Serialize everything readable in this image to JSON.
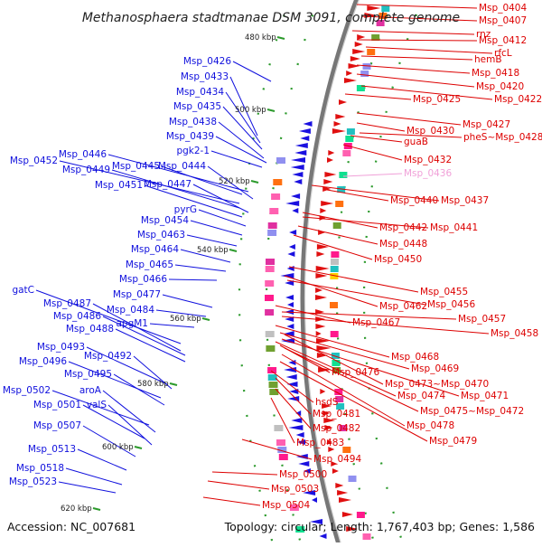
{
  "title": "Methanosphaera stadtmanae DSM 3091, complete genome",
  "accession": "Accession: NC_007681",
  "topology": "Topology: circular; Length: 1,767,403 bp; Genes: 1,586",
  "colors": {
    "left": "#1010dd",
    "right": "#dd0000",
    "faded": "#f0a0d8",
    "backbone": "#777777"
  },
  "kbp_ticks": [
    "480 kbp",
    "500 kbp",
    "520 kbp",
    "540 kbp",
    "560 kbp",
    "580 kbp",
    "600 kbp",
    "620 kbp"
  ],
  "right_labels": [
    {
      "text": "Msp_0404"
    },
    {
      "text": "Msp_0407"
    },
    {
      "text": "rnz"
    },
    {
      "text": "Msp_0412"
    },
    {
      "text": "rfcL"
    },
    {
      "text": "hemB"
    },
    {
      "text": "Msp_0418"
    },
    {
      "text": "Msp_0420"
    },
    {
      "text": "Msp_0422"
    },
    {
      "text": "Msp_0425"
    },
    {
      "text": "Msp_0427"
    },
    {
      "text": "Msp_0430"
    },
    {
      "text": "pheS~Msp_0428"
    },
    {
      "text": "guaB"
    },
    {
      "text": "Msp_0432"
    },
    {
      "text": "Msp_0436",
      "faded": true
    },
    {
      "text": "Msp_0440"
    },
    {
      "text": "Msp_0437"
    },
    {
      "text": "Msp_0442"
    },
    {
      "text": "Msp_0441"
    },
    {
      "text": "Msp_0448"
    },
    {
      "text": "Msp_0450"
    },
    {
      "text": "Msp_0455"
    },
    {
      "text": "Msp_0462"
    },
    {
      "text": "Msp_0456"
    },
    {
      "text": "Msp_0467"
    },
    {
      "text": "Msp_0457"
    },
    {
      "text": "Msp_0458"
    },
    {
      "text": "Msp_0468"
    },
    {
      "text": "Msp_0469"
    },
    {
      "text": "Msp_0476"
    },
    {
      "text": "Msp_0473~Msp_0470"
    },
    {
      "text": "Msp_0474"
    },
    {
      "text": "Msp_0471"
    },
    {
      "text": "hsdS"
    },
    {
      "text": "Msp_0475~Msp_0472"
    },
    {
      "text": "Msp_0481"
    },
    {
      "text": "Msp_0478"
    },
    {
      "text": "Msp_0482"
    },
    {
      "text": "Msp_0479"
    },
    {
      "text": "Msp_0483"
    },
    {
      "text": "Msp_0494"
    },
    {
      "text": "Msp_0500"
    },
    {
      "text": "Msp_0503"
    },
    {
      "text": "Msp_0504"
    }
  ],
  "left_labels": [
    {
      "text": "Msp_0426"
    },
    {
      "text": "Msp_0433"
    },
    {
      "text": "Msp_0434"
    },
    {
      "text": "Msp_0435"
    },
    {
      "text": "Msp_0438"
    },
    {
      "text": "Msp_0439"
    },
    {
      "text": "pgk2-1"
    },
    {
      "text": "Msp_0446"
    },
    {
      "text": "Msp_0452"
    },
    {
      "text": "Msp_0445"
    },
    {
      "text": "Msp_0444"
    },
    {
      "text": "Msp_0449"
    },
    {
      "text": "Msp_0451"
    },
    {
      "text": "Msp_0447"
    },
    {
      "text": "pyrG"
    },
    {
      "text": "Msp_0454"
    },
    {
      "text": "Msp_0463"
    },
    {
      "text": "Msp_0464"
    },
    {
      "text": "Msp_0465"
    },
    {
      "text": "Msp_0466"
    },
    {
      "text": "gatC"
    },
    {
      "text": "Msp_0477"
    },
    {
      "text": "Msp_0487"
    },
    {
      "text": "Msp_0484"
    },
    {
      "text": "Msp_0486"
    },
    {
      "text": "apgM1"
    },
    {
      "text": "Msp_0488"
    },
    {
      "text": "Msp_0493"
    },
    {
      "text": "Msp_0492"
    },
    {
      "text": "Msp_0496"
    },
    {
      "text": "Msp_0495"
    },
    {
      "text": "Msp_0502"
    },
    {
      "text": "aroA"
    },
    {
      "text": "Msp_0501"
    },
    {
      "text": "valS"
    },
    {
      "text": "Msp_0507"
    },
    {
      "text": "Msp_0513"
    },
    {
      "text": "Msp_0518"
    },
    {
      "text": "Msp_0523"
    }
  ]
}
